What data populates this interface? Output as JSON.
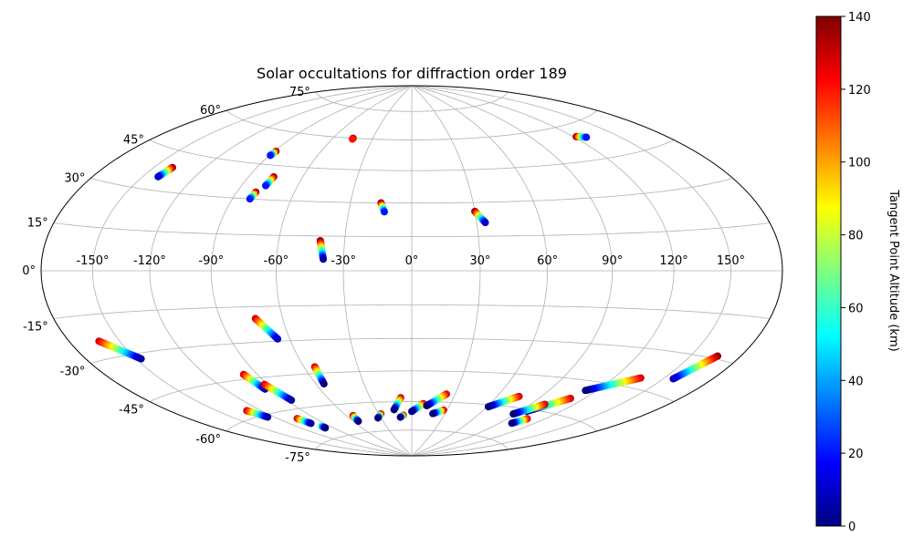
{
  "chart_data": {
    "type": "scatter",
    "projection": "hammer",
    "title": "Solar occultations for diffraction order 189",
    "grid": true,
    "lon_tick_labels": [
      "-150°",
      "-120°",
      "-90°",
      "-60°",
      "-30°",
      "0°",
      "30°",
      "60°",
      "90°",
      "120°",
      "150°"
    ],
    "lat_tick_labels": [
      "75°",
      "60°",
      "45°",
      "30°",
      "15°",
      "0°",
      "-15°",
      "-30°",
      "-45°",
      "-60°",
      "-75°"
    ],
    "colorbar": {
      "label": "Tangent Point Altitude (km)",
      "range": [
        0,
        140
      ],
      "ticks": [
        "0",
        "20",
        "40",
        "60",
        "80",
        "100",
        "120",
        "140"
      ],
      "colormap": "jet"
    },
    "colormap_stops": [
      "#00007f",
      "#0000ff",
      "#007fff",
      "#00ffff",
      "#7fff7f",
      "#ffff00",
      "#ff7f00",
      "#ff0000",
      "#7f0000"
    ],
    "tracks": [
      {
        "start": [
          -139,
          39
        ],
        "end": [
          -141,
          35
        ],
        "alt_start": 140,
        "alt_end": 10
      },
      {
        "start": [
          -89,
          51
        ],
        "end": [
          -89.5,
          49
        ],
        "alt_start": 140,
        "alt_end": 20
      },
      {
        "start": [
          -45,
          60
        ],
        "end": [
          -45,
          59.5
        ],
        "alt_start": 140,
        "alt_end": 120
      },
      {
        "start": [
          -76,
          40
        ],
        "end": [
          -77,
          36
        ],
        "alt_start": 140,
        "alt_end": 20
      },
      {
        "start": [
          -80,
          33
        ],
        "end": [
          -81,
          30
        ],
        "alt_start": 140,
        "alt_end": 20
      },
      {
        "start": [
          -41,
          13
        ],
        "end": [
          -39,
          5
        ],
        "alt_start": 140,
        "alt_end": 5
      },
      {
        "start": [
          -15,
          30
        ],
        "end": [
          -13,
          26
        ],
        "alt_start": 140,
        "alt_end": 20
      },
      {
        "start": [
          30,
          26
        ],
        "end": [
          34,
          21
        ],
        "alt_start": 140,
        "alt_end": 10
      },
      {
        "start": [
          122,
          55
        ],
        "end": [
          128,
          54
        ],
        "alt_start": 140,
        "alt_end": 20
      },
      {
        "start": [
          -162,
          -24
        ],
        "end": [
          -147,
          -32
        ],
        "alt_start": 130,
        "alt_end": 5
      },
      {
        "start": [
          -73,
          -20
        ],
        "end": [
          -66,
          -29
        ],
        "alt_start": 130,
        "alt_end": 10
      },
      {
        "start": [
          -98,
          -43
        ],
        "end": [
          -95,
          -50
        ],
        "alt_start": 130,
        "alt_end": 5
      },
      {
        "start": [
          -92,
          -48
        ],
        "end": [
          -87,
          -56
        ],
        "alt_start": 130,
        "alt_end": 5
      },
      {
        "start": [
          -54,
          -42
        ],
        "end": [
          -55,
          -50
        ],
        "alt_start": 130,
        "alt_end": 0
      },
      {
        "start": [
          -130,
          -57
        ],
        "end": [
          -125,
          -61
        ],
        "alt_start": 130,
        "alt_end": 5
      },
      {
        "start": [
          -105,
          -64
        ],
        "end": [
          -102,
          -67
        ],
        "alt_start": 130,
        "alt_end": 5
      },
      {
        "start": [
          -98,
          -69
        ],
        "end": [
          -98,
          -70
        ],
        "alt_start": 60,
        "alt_end": 0
      },
      {
        "start": [
          -54,
          -66
        ],
        "end": [
          -55,
          -69
        ],
        "alt_start": 130,
        "alt_end": 0
      },
      {
        "start": [
          -28,
          -66
        ],
        "end": [
          -33,
          -68
        ],
        "alt_start": 130,
        "alt_end": 0
      },
      {
        "start": [
          -8,
          -58
        ],
        "end": [
          -15,
          -64
        ],
        "alt_start": 130,
        "alt_end": 0
      },
      {
        "start": [
          -8,
          -67
        ],
        "end": [
          -11,
          -68
        ],
        "alt_start": 130,
        "alt_end": 0
      },
      {
        "start": [
          9,
          -61
        ],
        "end": [
          0,
          -65
        ],
        "alt_start": 130,
        "alt_end": 0
      },
      {
        "start": [
          24,
          -56
        ],
        "end": [
          12,
          -62
        ],
        "alt_start": 130,
        "alt_end": 0
      },
      {
        "start": [
          27,
          -64
        ],
        "end": [
          19,
          -66
        ],
        "alt_start": 130,
        "alt_end": 0
      },
      {
        "start": [
          75,
          -55
        ],
        "end": [
          61,
          -61
        ],
        "alt_start": 130,
        "alt_end": 0
      },
      {
        "start": [
          111,
          -53
        ],
        "end": [
          95,
          -61
        ],
        "alt_start": 130,
        "alt_end": 0
      },
      {
        "start": [
          100,
          -57
        ],
        "end": [
          88,
          -63
        ],
        "alt_start": 130,
        "alt_end": 0
      },
      {
        "start": [
          106,
          -64
        ],
        "end": [
          101,
          -67
        ],
        "alt_start": 130,
        "alt_end": 0
      },
      {
        "start": [
          136,
          -41
        ],
        "end": [
          113,
          -49
        ],
        "alt_start": 130,
        "alt_end": 0
      },
      {
        "start": [
          166,
          -29
        ],
        "end": [
          156,
          -39
        ],
        "alt_start": 140,
        "alt_end": 10
      }
    ]
  }
}
